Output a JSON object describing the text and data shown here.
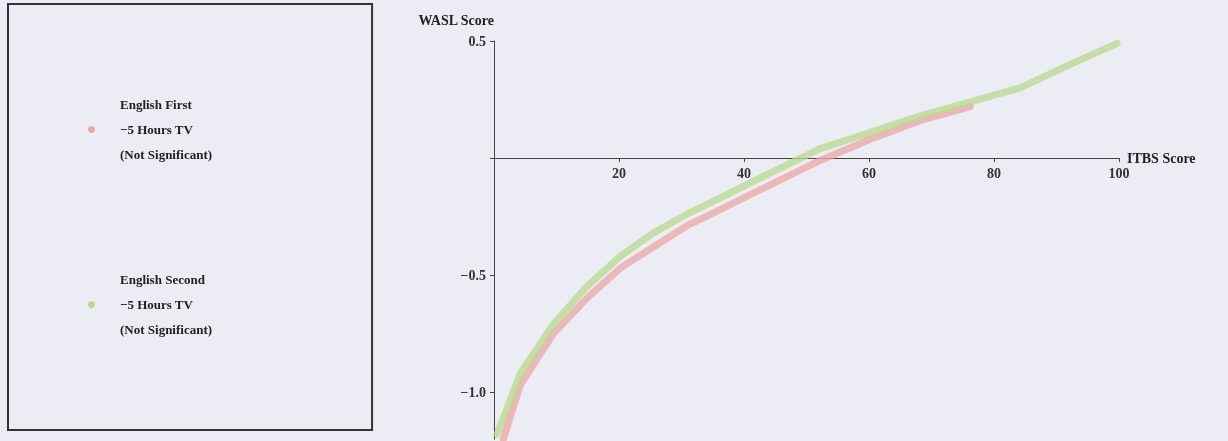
{
  "chart_data": {
    "type": "line",
    "xlabel": "ITBS Score",
    "ylabel": "WASL Score",
    "xlim": [
      0,
      100
    ],
    "xticks": [
      20,
      40,
      60,
      80,
      100
    ],
    "ylim": [
      -1.2,
      0.5
    ],
    "yticks": [
      {
        "value": -1.0,
        "label": "−1.0"
      },
      {
        "value": -0.5,
        "label": "−0.5"
      },
      {
        "value": 0,
        "label": null
      },
      0.5
    ],
    "grid": false,
    "legend": "left",
    "marker": "none",
    "line_style": "solid",
    "series": [
      {
        "name": "English First\n−5 Hours TV\n(Not Significant)",
        "color": "#eba5a5",
        "x": [
          1.5,
          4.2,
          9.5,
          14.8,
          20.2,
          25.5,
          30.8,
          36.2,
          41.5,
          46.8,
          52.2,
          60.2,
          68.2,
          76.2
        ],
        "values": [
          -1.2,
          -0.97,
          -0.75,
          -0.6,
          -0.47,
          -0.38,
          -0.29,
          -0.22,
          -0.15,
          -0.08,
          -0.01,
          0.08,
          0.16,
          0.22
        ]
      },
      {
        "name": "English Second\n−5 Hours TV\n(Not Significant)",
        "color": "#b8da8e",
        "x": [
          0.5,
          4.2,
          9.5,
          14.8,
          20.2,
          25.5,
          30.8,
          36.2,
          41.5,
          46.8,
          52.2,
          60.2,
          68.2,
          76.2,
          84.2,
          92.2,
          99.7
        ],
        "values": [
          -1.18,
          -0.92,
          -0.71,
          -0.55,
          -0.42,
          -0.32,
          -0.24,
          -0.17,
          -0.1,
          -0.03,
          0.04,
          0.11,
          0.18,
          0.24,
          0.3,
          0.4,
          0.49
        ]
      }
    ]
  }
}
